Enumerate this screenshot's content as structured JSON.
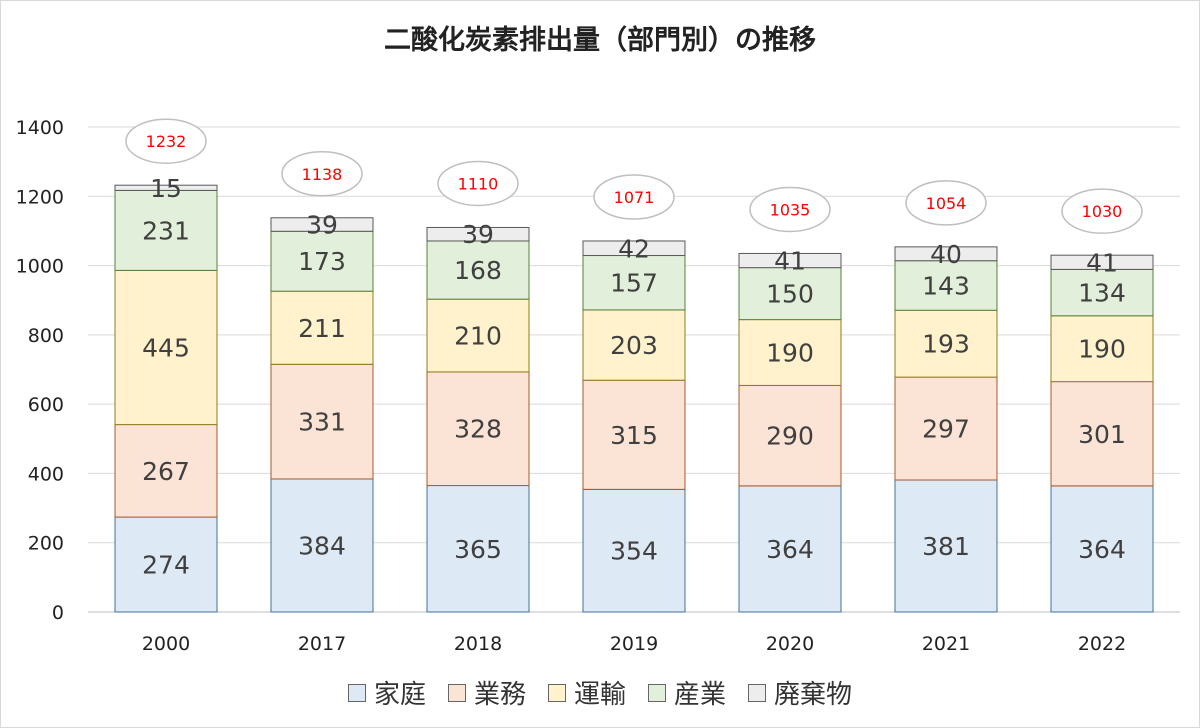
{
  "chart_data": {
    "type": "bar",
    "stacked": true,
    "title": "二酸化炭素排出量（部門別）の推移",
    "categories": [
      "2000",
      "2017",
      "2018",
      "2019",
      "2020",
      "2021",
      "2022"
    ],
    "series": [
      {
        "name": "家庭",
        "values": [
          274,
          384,
          365,
          354,
          364,
          381,
          364
        ],
        "color": "#dde9f5",
        "stroke": "#41719c"
      },
      {
        "name": "業務",
        "values": [
          267,
          331,
          328,
          315,
          290,
          297,
          301
        ],
        "color": "#fbe3d6",
        "stroke": "#a65a2a"
      },
      {
        "name": "運輸",
        "values": [
          445,
          211,
          210,
          203,
          190,
          193,
          190
        ],
        "color": "#fff2cc",
        "stroke": "#8f7b1c"
      },
      {
        "name": "産業",
        "values": [
          231,
          173,
          168,
          157,
          150,
          143,
          134
        ],
        "color": "#e2efda",
        "stroke": "#548235"
      },
      {
        "name": "廃棄物",
        "values": [
          15,
          39,
          39,
          42,
          41,
          40,
          41
        ],
        "color": "#ededed",
        "stroke": "#595959"
      }
    ],
    "totals": [
      1232,
      1138,
      1110,
      1071,
      1035,
      1054,
      1030
    ],
    "ylim": [
      0,
      1400
    ],
    "yticks": [
      0,
      200,
      400,
      600,
      800,
      1000,
      1200,
      1400
    ],
    "grid": true,
    "legend": "bottom",
    "colors": {
      "total_label": "#ff0000",
      "grid": "#d9d9d9"
    }
  }
}
